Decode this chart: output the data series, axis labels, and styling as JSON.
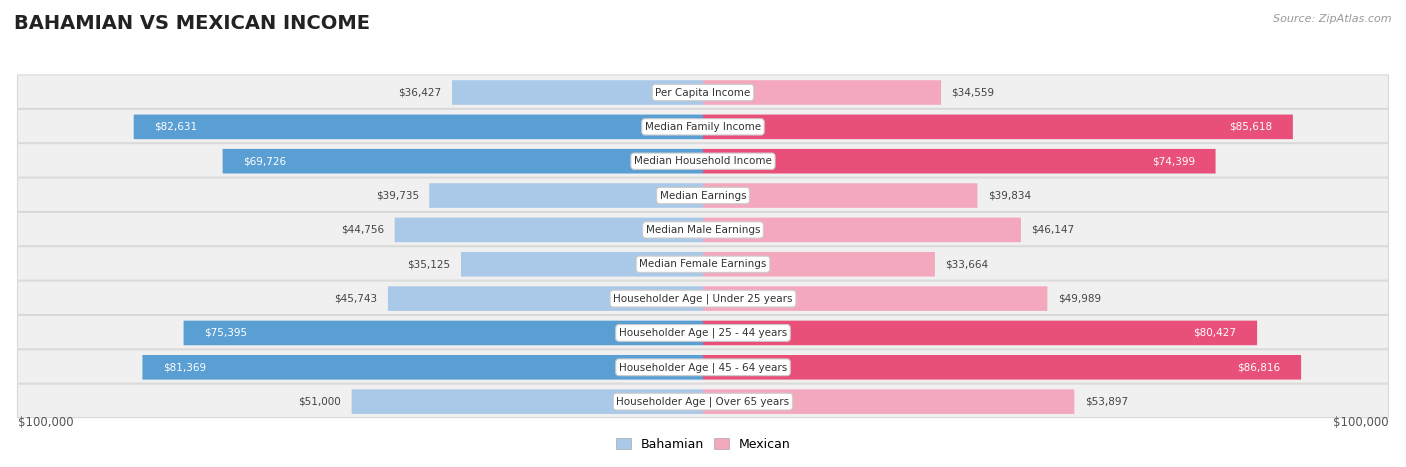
{
  "title": "BAHAMIAN VS MEXICAN INCOME",
  "source": "Source: ZipAtlas.com",
  "categories": [
    "Per Capita Income",
    "Median Family Income",
    "Median Household Income",
    "Median Earnings",
    "Median Male Earnings",
    "Median Female Earnings",
    "Householder Age | Under 25 years",
    "Householder Age | 25 - 44 years",
    "Householder Age | 45 - 64 years",
    "Householder Age | Over 65 years"
  ],
  "bahamian": [
    36427,
    82631,
    69726,
    39735,
    44756,
    35125,
    45743,
    75395,
    81369,
    51000
  ],
  "mexican": [
    34559,
    85618,
    74399,
    39834,
    46147,
    33664,
    49989,
    80427,
    86816,
    53897
  ],
  "max_val": 100000,
  "bahamian_color_light": "#aac8e8",
  "bahamian_color_dark": "#5a9fd4",
  "mexican_color_light": "#f4a8be",
  "mexican_color_dark": "#e8507a",
  "row_bg_color": "#f0f0f0",
  "row_bg_border": "#d8d8d8",
  "label_threshold": 55000,
  "xlabel_left": "$100,000",
  "xlabel_right": "$100,000",
  "legend_bahamian": "Bahamian",
  "legend_mexican": "Mexican",
  "title_fontsize": 14,
  "source_fontsize": 8,
  "value_fontsize": 7.5,
  "cat_fontsize": 7.5
}
